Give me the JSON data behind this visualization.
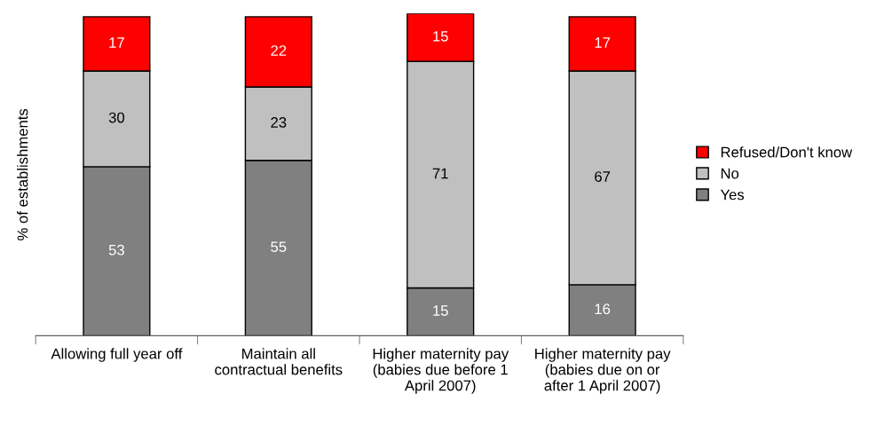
{
  "chart_data": {
    "type": "bar",
    "stacked": true,
    "ylabel": "% of establishments",
    "categories": [
      "Allowing full year off",
      "Maintain all\ncontractual benefits",
      "Higher maternity pay\n(babies due before 1\nApril 2007)",
      "Higher maternity pay\n(babies due on or\nafter 1 April 2007)"
    ],
    "series": [
      {
        "name": "Yes",
        "color": "#808080",
        "values": [
          53,
          55,
          15,
          16
        ]
      },
      {
        "name": "No",
        "color": "#c0c0c0",
        "values": [
          30,
          23,
          71,
          67
        ]
      },
      {
        "name": "Refused/Don't know",
        "color": "#ff0000",
        "values": [
          17,
          22,
          15,
          17
        ]
      }
    ],
    "data_labels": true,
    "legend": "right",
    "grid": false
  }
}
